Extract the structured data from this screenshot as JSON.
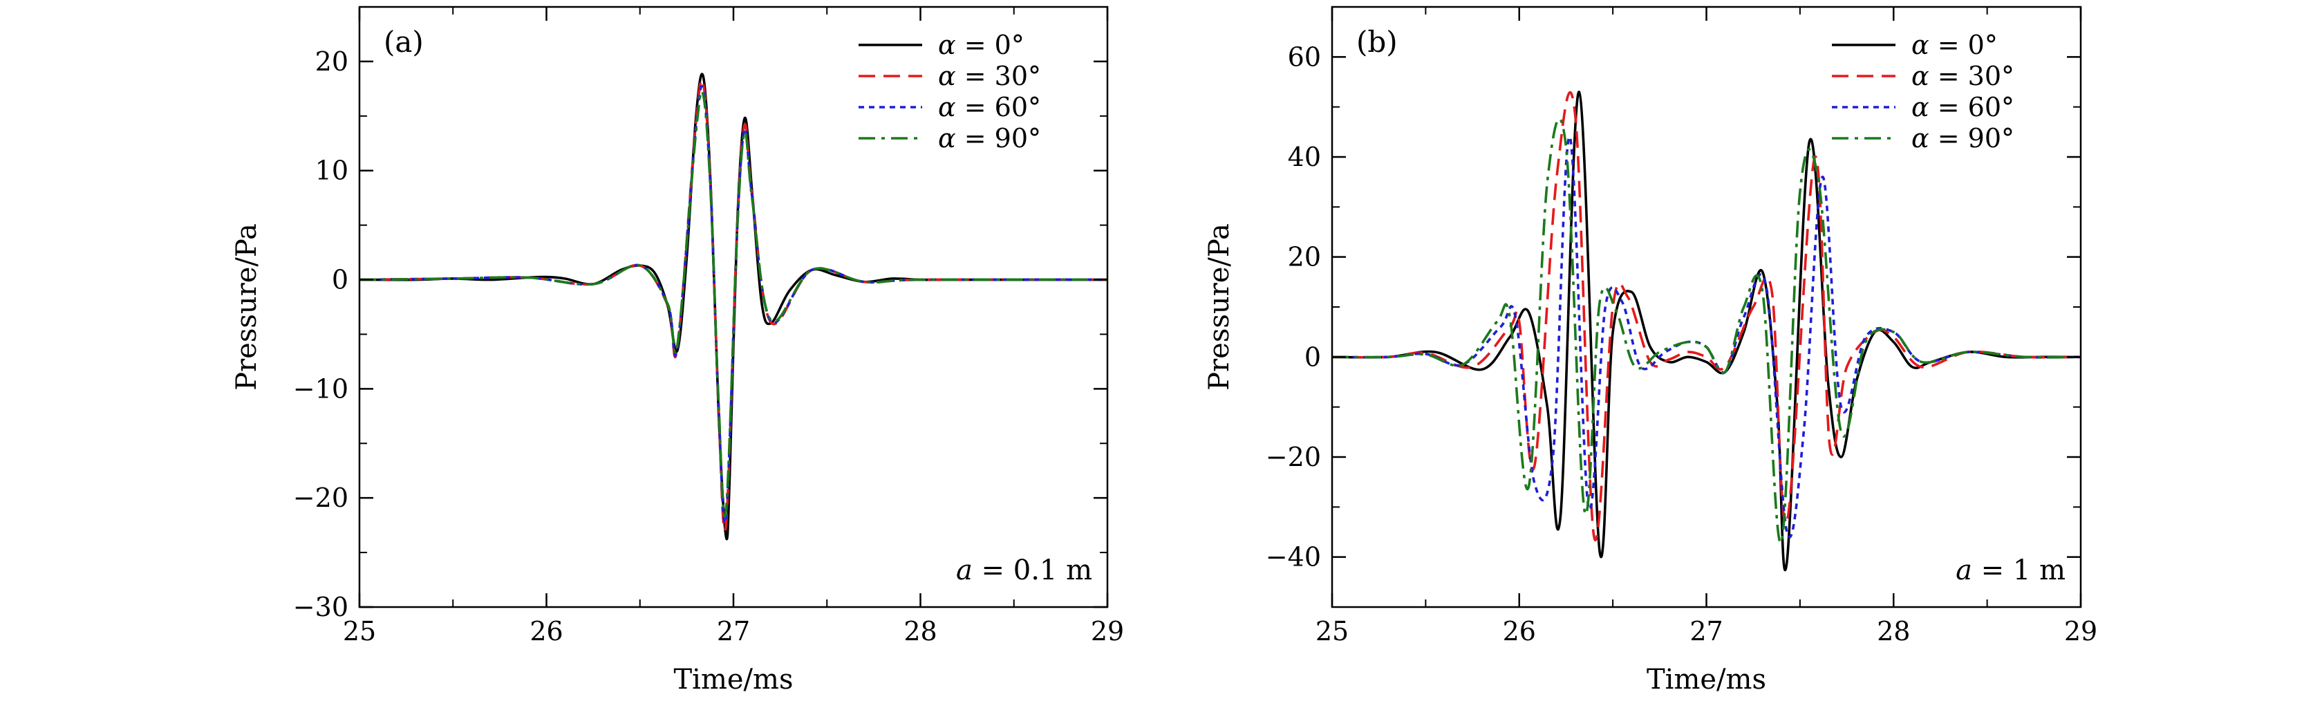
{
  "legend": [
    {
      "text": "α = 0°",
      "color": "#000000",
      "dash": "solid"
    },
    {
      "text": "α = 30°",
      "color": "#e41a1c",
      "dash": "dashed"
    },
    {
      "text": "α = 60°",
      "color": "#1f1fd6",
      "dash": "dotted"
    },
    {
      "text": "α = 90°",
      "color": "#1b7a1b",
      "dash": "dashdot"
    }
  ],
  "chart_data": [
    {
      "type": "line",
      "panel": "(a)",
      "xlabel": "Time/ms",
      "ylabel": "Pressure/Pa",
      "annotation": "a = 0.1 m",
      "xlim": [
        25,
        29
      ],
      "ylim": [
        -30,
        25
      ],
      "xticks": [
        "25",
        "26",
        "27",
        "28",
        "29"
      ],
      "yticks": [
        {
          "value": -30,
          "label": "−30"
        },
        {
          "value": -20,
          "label": "−20"
        },
        {
          "value": -10,
          "label": "−10"
        },
        {
          "value": 0,
          "label": "0"
        },
        {
          "value": 10,
          "label": "10"
        },
        {
          "value": 20,
          "label": "20"
        }
      ],
      "grid": false,
      "legend_position": "top-right",
      "series": [
        {
          "name": "α = 0°",
          "x": [
            25.0,
            25.3,
            25.5,
            25.7,
            25.9,
            26.0,
            26.1,
            26.25,
            26.4,
            26.5,
            26.58,
            26.65,
            26.7,
            26.75,
            26.8,
            26.84,
            26.88,
            26.92,
            26.96,
            26.98,
            27.02,
            27.06,
            27.1,
            27.15,
            27.2,
            27.3,
            27.42,
            27.55,
            27.7,
            27.85,
            28.0,
            28.2,
            28.5,
            29.0
          ],
          "y": [
            0,
            0,
            0.1,
            0,
            0.2,
            0.25,
            0.1,
            -0.4,
            0.9,
            1.3,
            0.6,
            -2.5,
            -6.5,
            2,
            15,
            18.5,
            8,
            -12,
            -23.5,
            -18,
            5,
            14.8,
            8,
            -2,
            -4,
            -1,
            0.9,
            0.4,
            -0.2,
            0.1,
            0,
            0,
            0,
            0
          ]
        },
        {
          "name": "α = 30°",
          "x": [
            25.0,
            25.5,
            25.9,
            26.25,
            26.5,
            26.65,
            26.7,
            26.8,
            26.84,
            26.88,
            26.92,
            26.96,
            27.02,
            27.06,
            27.1,
            27.2,
            27.42,
            27.7,
            28.0,
            29.0
          ],
          "y": [
            0,
            0.1,
            0.2,
            -0.4,
            1.3,
            -2.4,
            -6.3,
            14.5,
            17.8,
            7.8,
            -11.5,
            -22.5,
            4.8,
            14.2,
            7.8,
            -3.9,
            0.9,
            -0.2,
            0,
            0
          ]
        },
        {
          "name": "α = 60°",
          "x": [
            25.0,
            25.5,
            25.9,
            26.25,
            26.5,
            26.65,
            26.7,
            26.8,
            26.84,
            26.88,
            26.92,
            26.96,
            27.02,
            27.06,
            27.1,
            27.2,
            27.42,
            27.7,
            28.0,
            29.0
          ],
          "y": [
            0,
            0.1,
            0.2,
            -0.4,
            1.3,
            -2.3,
            -6.2,
            14.0,
            17.2,
            7.5,
            -11.2,
            -21.8,
            4.6,
            13.8,
            7.6,
            -3.8,
            0.9,
            -0.2,
            0,
            0
          ]
        },
        {
          "name": "α = 90°",
          "x": [
            25.0,
            25.5,
            25.9,
            26.25,
            26.5,
            26.65,
            26.7,
            26.8,
            26.84,
            26.88,
            26.92,
            26.96,
            27.02,
            27.06,
            27.1,
            27.2,
            27.42,
            27.7,
            28.0,
            29.0
          ],
          "y": [
            0,
            0.1,
            0.2,
            -0.4,
            1.3,
            -2.3,
            -6.0,
            13.6,
            16.8,
            7.3,
            -11.0,
            -21.2,
            4.5,
            13.5,
            7.4,
            -3.7,
            0.9,
            -0.2,
            0,
            0
          ]
        }
      ]
    },
    {
      "type": "line",
      "panel": "(b)",
      "xlabel": "Time/ms",
      "ylabel": "Pressure/Pa",
      "annotation": "a = 1 m",
      "xlim": [
        25,
        29
      ],
      "ylim": [
        -50,
        70
      ],
      "xticks": [
        "25",
        "26",
        "27",
        "28",
        "29"
      ],
      "yticks": [
        {
          "value": -40,
          "label": "−40"
        },
        {
          "value": -20,
          "label": "−20"
        },
        {
          "value": 0,
          "label": "0"
        },
        {
          "value": 20,
          "label": "20"
        },
        {
          "value": 40,
          "label": "40"
        },
        {
          "value": 60,
          "label": "60"
        }
      ],
      "grid": false,
      "legend_position": "top-right",
      "series": [
        {
          "name": "α = 0°",
          "x": [
            25.0,
            25.3,
            25.55,
            25.8,
            25.95,
            26.05,
            26.15,
            26.22,
            26.32,
            26.43,
            26.5,
            26.6,
            26.7,
            26.8,
            26.9,
            27.0,
            27.1,
            27.2,
            27.3,
            27.38,
            27.43,
            27.55,
            27.65,
            27.72,
            27.8,
            27.9,
            28.0,
            28.1,
            28.2,
            28.4,
            28.6,
            28.8,
            29.0
          ],
          "y": [
            0,
            0,
            1,
            -2.5,
            4,
            9,
            -10,
            -32,
            53,
            -39,
            5,
            13,
            2,
            -1,
            0,
            -1,
            -3,
            5,
            17,
            -10,
            -41,
            43,
            -5,
            -20,
            -5,
            5,
            3,
            -2,
            -1,
            1,
            0,
            0,
            0
          ]
        },
        {
          "name": "α = 30°",
          "x": [
            25.0,
            25.3,
            25.5,
            25.75,
            25.95,
            26.0,
            26.08,
            26.2,
            26.3,
            26.4,
            26.5,
            26.58,
            26.7,
            26.8,
            26.9,
            27.0,
            27.1,
            27.25,
            27.35,
            27.43,
            27.58,
            27.66,
            27.75,
            27.9,
            28.0,
            28.15,
            28.4,
            28.7,
            29.0
          ],
          "y": [
            0,
            0,
            0.8,
            -2,
            6,
            7,
            -22,
            36,
            48,
            -36,
            10,
            12,
            -1,
            -0.5,
            1,
            0,
            -2,
            10,
            13,
            -33,
            40,
            -18,
            -2,
            5,
            4,
            -2,
            1,
            0,
            0
          ]
        },
        {
          "name": "α = 60°",
          "x": [
            25.0,
            25.3,
            25.5,
            25.7,
            25.9,
            25.98,
            26.08,
            26.18,
            26.27,
            26.37,
            26.46,
            26.55,
            26.65,
            26.78,
            26.9,
            27.0,
            27.1,
            27.2,
            27.32,
            27.43,
            27.52,
            27.62,
            27.72,
            27.85,
            28.0,
            28.15,
            28.4,
            28.7,
            29.0
          ],
          "y": [
            0,
            0,
            0.6,
            -1.5,
            6,
            8,
            -25,
            -20,
            44,
            -30,
            10,
            11,
            -2,
            1,
            3,
            2,
            -3,
            8,
            14,
            -35,
            -15,
            36,
            -10,
            4,
            5,
            -1,
            1,
            0,
            0
          ]
        },
        {
          "name": "α = 90°",
          "x": [
            25.0,
            25.3,
            25.5,
            25.7,
            25.88,
            25.95,
            26.05,
            26.15,
            26.25,
            26.35,
            26.43,
            26.52,
            26.62,
            26.75,
            26.9,
            27.0,
            27.1,
            27.2,
            27.3,
            27.4,
            27.5,
            27.6,
            27.72,
            27.85,
            28.0,
            28.15,
            28.4,
            28.7,
            29.0
          ],
          "y": [
            0,
            0,
            0.5,
            -1.5,
            7,
            8,
            -26,
            35,
            42,
            -31,
            11,
            9,
            -2,
            1,
            3,
            2,
            -3,
            10,
            13,
            -37,
            33,
            35,
            -15,
            3,
            5,
            -1,
            1,
            0,
            0
          ]
        }
      ]
    }
  ]
}
